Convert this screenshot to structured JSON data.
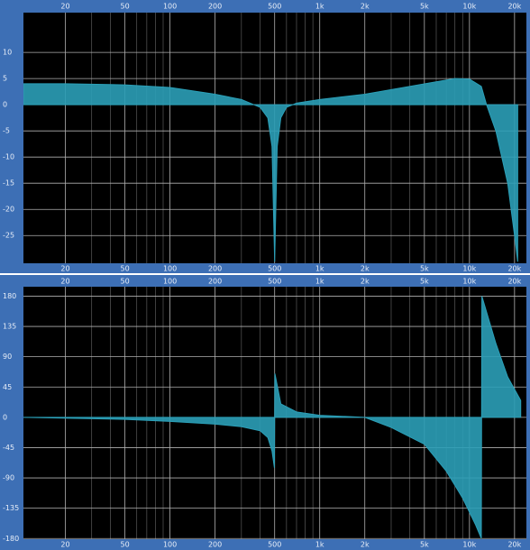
{
  "chart_data": [
    {
      "type": "area",
      "log_x": true,
      "grid": true,
      "color": "#2b9fb7",
      "xlim": [
        10.5,
        24000
      ],
      "ylim": [
        -30.3,
        17.6
      ],
      "xticks": [
        20,
        50,
        100,
        200,
        500,
        {
          "value": 1000,
          "label": "1k"
        },
        {
          "value": 2000,
          "label": "2k"
        },
        {
          "value": 5000,
          "label": "5k"
        },
        {
          "value": 10000,
          "label": "10k"
        },
        {
          "value": 20000,
          "label": "20k"
        }
      ],
      "minor_xticks": [
        30,
        40,
        60,
        70,
        80,
        90,
        300,
        400,
        600,
        700,
        800,
        900,
        3000,
        4000,
        6000,
        7000,
        8000,
        9000
      ],
      "yticks": [
        10,
        5,
        0,
        -5,
        -10,
        -15,
        -20,
        -25
      ],
      "x": [
        10.5,
        20,
        50,
        100,
        200,
        300,
        400,
        450,
        480,
        500,
        520,
        550,
        600,
        700,
        1000,
        2000,
        5000,
        8000,
        10000,
        12000,
        13000,
        15000,
        18000,
        20000,
        21000
      ],
      "values": [
        4,
        4,
        3.8,
        3.3,
        2,
        1,
        -0.5,
        -2.5,
        -8,
        -30,
        -8,
        -2.5,
        -0.5,
        0.3,
        1,
        2,
        4,
        5,
        4.9,
        3.5,
        0,
        -5,
        -15,
        -25,
        -30
      ]
    },
    {
      "type": "area",
      "log_x": true,
      "grid": true,
      "color": "#2b9fb7",
      "xlim": [
        10.5,
        24000
      ],
      "ylim": [
        -181,
        194
      ],
      "xticks": [
        20,
        50,
        100,
        200,
        500,
        {
          "value": 1000,
          "label": "1k"
        },
        {
          "value": 2000,
          "label": "2k"
        },
        {
          "value": 5000,
          "label": "5k"
        },
        {
          "value": 10000,
          "label": "10k"
        },
        {
          "value": 20000,
          "label": "20k"
        }
      ],
      "minor_xticks": [
        30,
        40,
        60,
        70,
        80,
        90,
        300,
        400,
        600,
        700,
        800,
        900,
        3000,
        4000,
        6000,
        7000,
        8000,
        9000
      ],
      "yticks": [
        180,
        135,
        90,
        45,
        0,
        -45,
        -90,
        -135,
        -180
      ],
      "x": [
        10.5,
        50,
        100,
        200,
        300,
        400,
        450,
        480,
        498,
        502,
        550,
        700,
        1000,
        2000,
        3000,
        5000,
        7000,
        9000,
        11000,
        12000,
        12100,
        15000,
        18000,
        22000
      ],
      "values": [
        0,
        -3,
        -6,
        -10,
        -14,
        -20,
        -30,
        -50,
        -75,
        65,
        20,
        8,
        3,
        0,
        -15,
        -40,
        -80,
        -120,
        -160,
        -180,
        180,
        110,
        60,
        25
      ]
    }
  ]
}
